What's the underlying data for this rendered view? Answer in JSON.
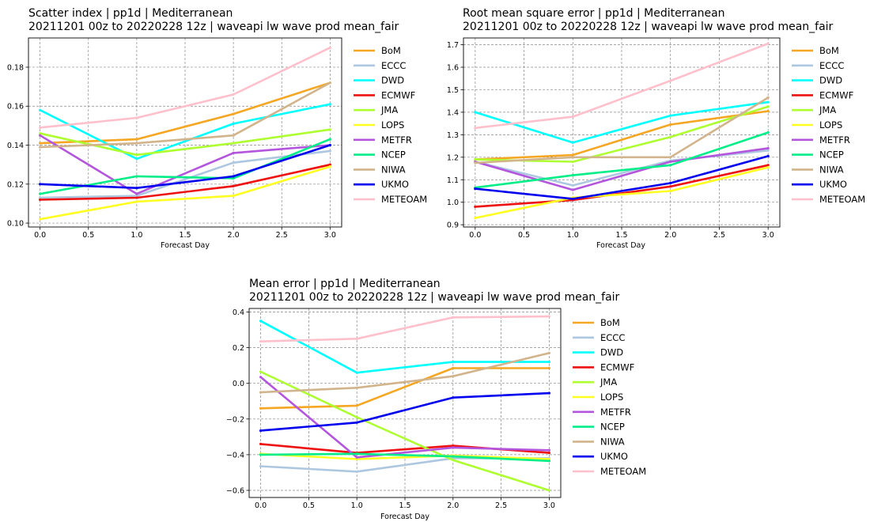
{
  "chart_data": [
    {
      "type": "line",
      "title": "Scatter index  |  pp1d  |  Mediterranean",
      "subtitle": "20211201 00z to 20220228 12z  |  waveapi lw wave prod mean_fair",
      "xlabel": "Forecast Day",
      "ylabel": "",
      "x": [
        0,
        1,
        2,
        3
      ],
      "xlim": [
        -0.12,
        3.12
      ],
      "ylim": [
        0.098,
        0.195
      ],
      "xticks": [
        "0.0",
        "0.5",
        "1.0",
        "1.5",
        "2.0",
        "2.5",
        "3.0"
      ],
      "yticks": [
        "0.10",
        "0.12",
        "0.14",
        "0.16",
        "0.18"
      ],
      "grid": true,
      "legend": "right",
      "series": [
        {
          "name": "BoM",
          "color": "#f5a623",
          "values": [
            0.141,
            0.143,
            0.156,
            0.172
          ]
        },
        {
          "name": "ECCC",
          "color": "#aec7e0",
          "values": [
            0.113,
            0.114,
            0.131,
            0.137
          ]
        },
        {
          "name": "DWD",
          "color": "#00ffff",
          "values": [
            0.158,
            0.133,
            0.151,
            0.161
          ]
        },
        {
          "name": "ECMWF",
          "color": "#ee1111",
          "values": [
            0.112,
            0.113,
            0.119,
            0.13
          ]
        },
        {
          "name": "JMA",
          "color": "#adff2f",
          "values": [
            0.146,
            0.135,
            0.141,
            0.148
          ]
        },
        {
          "name": "LOPS",
          "color": "#ffff22",
          "values": [
            0.102,
            0.111,
            0.114,
            0.129
          ]
        },
        {
          "name": "METFR",
          "color": "#b455dd",
          "values": [
            0.145,
            0.115,
            0.136,
            0.14
          ]
        },
        {
          "name": "NCEP",
          "color": "#00ee88",
          "values": [
            0.115,
            0.124,
            0.123,
            0.143
          ]
        },
        {
          "name": "NIWA",
          "color": "#d2b48c",
          "values": [
            0.139,
            0.141,
            0.145,
            0.172
          ]
        },
        {
          "name": "UKMO",
          "color": "#0000ee",
          "values": [
            0.12,
            0.118,
            0.124,
            0.14
          ]
        },
        {
          "name": "METEOAM",
          "color": "#ffc0cb",
          "values": [
            0.149,
            0.154,
            0.166,
            0.19
          ]
        }
      ]
    },
    {
      "type": "line",
      "title": "Root mean square error  |  pp1d  |  Mediterranean",
      "subtitle": "20211201 00z to 20220228 12z  |  waveapi lw wave prod mean_fair",
      "xlabel": "Forecast Day",
      "ylabel": "",
      "x": [
        0,
        1,
        2,
        3
      ],
      "xlim": [
        -0.12,
        3.12
      ],
      "ylim": [
        0.89,
        1.73
      ],
      "xticks": [
        "0.0",
        "0.5",
        "1.0",
        "1.5",
        "2.0",
        "2.5",
        "3.0"
      ],
      "yticks": [
        "0.9",
        "1.0",
        "1.1",
        "1.2",
        "1.3",
        "1.4",
        "1.5",
        "1.6",
        "1.7"
      ],
      "grid": true,
      "legend": "right",
      "series": [
        {
          "name": "BoM",
          "color": "#f5a623",
          "values": [
            1.19,
            1.21,
            1.345,
            1.405
          ]
        },
        {
          "name": "ECCC",
          "color": "#aec7e0",
          "values": [
            1.18,
            1.075,
            1.185,
            1.23
          ]
        },
        {
          "name": "DWD",
          "color": "#00ffff",
          "values": [
            1.4,
            1.265,
            1.385,
            1.445
          ]
        },
        {
          "name": "ECMWF",
          "color": "#ee1111",
          "values": [
            0.98,
            1.01,
            1.07,
            1.165
          ]
        },
        {
          "name": "JMA",
          "color": "#adff2f",
          "values": [
            1.19,
            1.18,
            1.29,
            1.425
          ]
        },
        {
          "name": "LOPS",
          "color": "#ffff22",
          "values": [
            0.93,
            1.02,
            1.05,
            1.155
          ]
        },
        {
          "name": "METFR",
          "color": "#b455dd",
          "values": [
            1.18,
            1.055,
            1.18,
            1.24
          ]
        },
        {
          "name": "NCEP",
          "color": "#00ee88",
          "values": [
            1.065,
            1.12,
            1.165,
            1.31
          ]
        },
        {
          "name": "NIWA",
          "color": "#d2b48c",
          "values": [
            1.175,
            1.2,
            1.2,
            1.465
          ]
        },
        {
          "name": "UKMO",
          "color": "#0000ee",
          "values": [
            1.06,
            1.015,
            1.085,
            1.205
          ]
        },
        {
          "name": "METEOAM",
          "color": "#ffc0cb",
          "values": [
            1.33,
            1.38,
            1.54,
            1.705
          ]
        }
      ]
    },
    {
      "type": "line",
      "title": "Mean error  |  pp1d  |  Mediterranean",
      "subtitle": "20211201 00z to 20220228 12z  |  waveapi lw wave prod mean_fair",
      "xlabel": "Forecast Day",
      "ylabel": "",
      "x": [
        0,
        1,
        2,
        3
      ],
      "xlim": [
        -0.12,
        3.12
      ],
      "ylim": [
        -0.64,
        0.42
      ],
      "xticks": [
        "0.0",
        "0.5",
        "1.0",
        "1.5",
        "2.0",
        "2.5",
        "3.0"
      ],
      "yticks": [
        "−0.6",
        "−0.4",
        "−0.2",
        "0.0",
        "0.2",
        "0.4"
      ],
      "grid": true,
      "legend": "right",
      "series": [
        {
          "name": "BoM",
          "color": "#f5a623",
          "values": [
            -0.14,
            -0.125,
            0.085,
            0.085
          ]
        },
        {
          "name": "ECCC",
          "color": "#aec7e0",
          "values": [
            -0.465,
            -0.495,
            -0.42,
            -0.42
          ]
        },
        {
          "name": "DWD",
          "color": "#00ffff",
          "values": [
            0.35,
            0.06,
            0.12,
            0.12
          ]
        },
        {
          "name": "ECMWF",
          "color": "#ee1111",
          "values": [
            -0.34,
            -0.39,
            -0.35,
            -0.39
          ]
        },
        {
          "name": "JMA",
          "color": "#adff2f",
          "values": [
            0.065,
            -0.19,
            -0.43,
            -0.6
          ]
        },
        {
          "name": "LOPS",
          "color": "#ffff22",
          "values": [
            -0.395,
            -0.425,
            -0.405,
            -0.425
          ]
        },
        {
          "name": "METFR",
          "color": "#b455dd",
          "values": [
            0.035,
            -0.415,
            -0.36,
            -0.375
          ]
        },
        {
          "name": "NCEP",
          "color": "#00ee88",
          "values": [
            -0.4,
            -0.395,
            -0.41,
            -0.435
          ]
        },
        {
          "name": "NIWA",
          "color": "#d2b48c",
          "values": [
            -0.05,
            -0.025,
            0.04,
            0.17
          ]
        },
        {
          "name": "UKMO",
          "color": "#0000ee",
          "values": [
            -0.265,
            -0.22,
            -0.08,
            -0.055
          ]
        },
        {
          "name": "METEOAM",
          "color": "#ffc0cb",
          "values": [
            0.235,
            0.25,
            0.37,
            0.375
          ]
        }
      ]
    }
  ]
}
